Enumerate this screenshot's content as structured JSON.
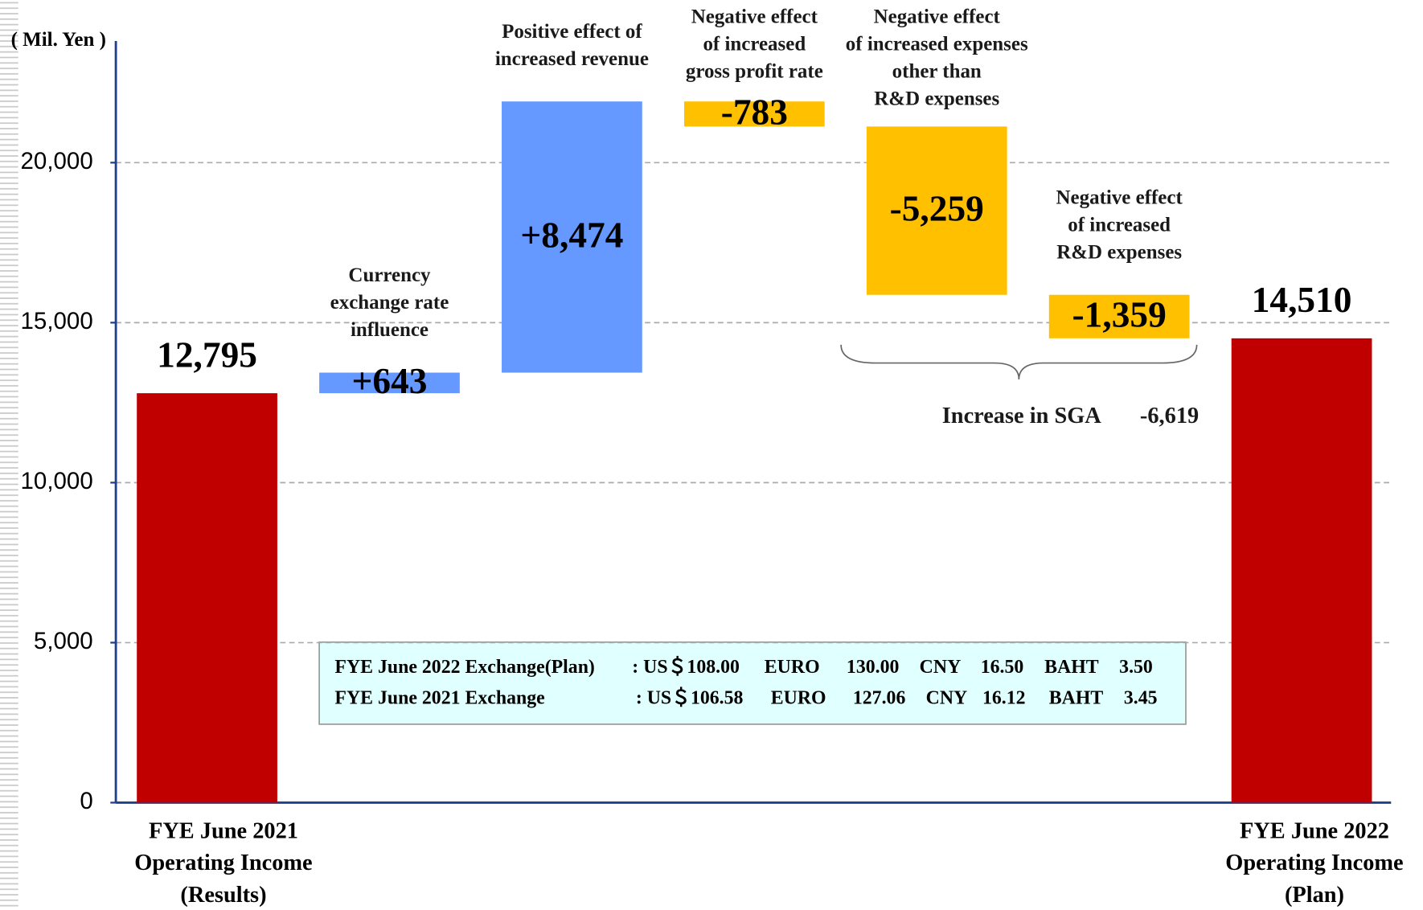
{
  "chart_data": {
    "type": "waterfall",
    "unit_label": "( Mil. Yen )",
    "categories": [
      [
        "FYE June 2021",
        "Operating Income",
        "(Results)"
      ],
      [
        "Currency",
        "exchange rate",
        "influence"
      ],
      [
        "Positive effect of",
        "increased revenue"
      ],
      [
        "Negative effect",
        "of increased",
        "gross profit rate"
      ],
      [
        "Negative effect",
        "of increased expenses",
        "other than",
        "R&D expenses"
      ],
      [
        "Negative effect",
        "of increased",
        "R&D expenses"
      ],
      [
        "FYE June 2022",
        "Operating Income",
        "(Plan)"
      ]
    ],
    "values": [
      12795,
      643,
      8474,
      -783,
      -5259,
      -1359,
      14510
    ],
    "value_labels": [
      "12,795",
      "+643",
      "+8,474",
      "-783",
      "-5,259",
      "-1,359",
      "14,510"
    ],
    "totals": [
      true,
      false,
      false,
      false,
      false,
      false,
      true
    ],
    "colors": [
      "#c00000",
      "#6699ff",
      "#6699ff",
      "#ffc000",
      "#ffc000",
      "#ffc000",
      "#c00000"
    ],
    "ylim": [
      0,
      23800
    ],
    "yticks": [
      0,
      {
        "value": 5000,
        "label": "5,000"
      },
      {
        "value": 10000,
        "label": "10,000"
      },
      {
        "value": 15000,
        "label": "15,000"
      },
      {
        "value": 20000,
        "label": "20,000"
      }
    ],
    "grid": true,
    "sga": {
      "label": "Increase in SGA",
      "value_label": "-6,619"
    },
    "exchange_rates": [
      [
        "FYE June 2022 Exchange(Plan)",
        ": US＄108.00",
        "EURO",
        "130.00",
        "CNY",
        "16.50",
        "BAHT",
        "3.50"
      ],
      [
        "FYE June 2021 Exchange",
        ": US＄106.58",
        "EURO",
        "127.06",
        "CNY",
        "16.12",
        "BAHT",
        "3.45"
      ]
    ]
  }
}
